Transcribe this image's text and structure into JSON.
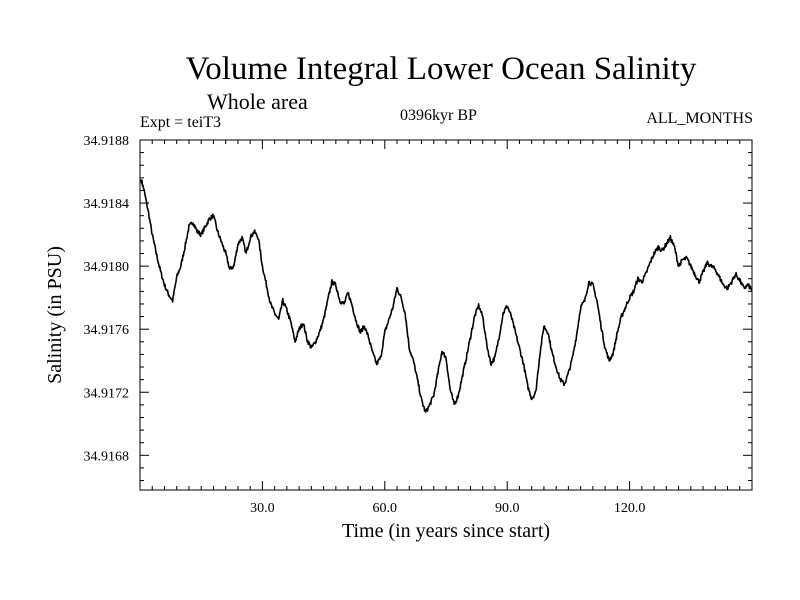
{
  "chart_data": {
    "type": "line",
    "title": "Volume Integral Lower Ocean Salinity",
    "subtitle": "Whole area",
    "expt_label": "Expt = teiT3",
    "period_label": "0396kyr BP",
    "months_label": "ALL_MONTHS",
    "xlabel": "Time (in years since start)",
    "ylabel": "Salinity (in PSU)",
    "xlim": [
      0,
      150
    ],
    "ylim": [
      34.91658,
      34.9188
    ],
    "x_ticks": [
      30,
      60,
      90,
      120
    ],
    "x_tick_labels": [
      "30.0",
      "60.0",
      "90.0",
      "120.0"
    ],
    "y_ticks": [
      34.9168,
      34.9172,
      34.9176,
      34.918,
      34.9184,
      34.9188
    ],
    "y_tick_labels": [
      "34.9168",
      "34.9172",
      "34.9176",
      "34.9180",
      "34.9184",
      "34.9188"
    ],
    "grid": false,
    "series": [
      {
        "name": "salinity",
        "x": [
          0.3,
          1,
          2,
          3,
          4,
          5,
          6,
          7,
          8,
          9,
          10,
          11,
          12,
          13,
          14,
          15,
          16,
          17,
          18,
          19,
          20,
          21,
          22,
          23,
          24,
          25,
          26,
          27,
          28,
          29,
          30,
          31,
          32,
          33,
          34,
          35,
          36,
          37,
          38,
          39,
          40,
          41,
          42,
          43,
          44,
          45,
          46,
          47,
          48,
          49,
          50,
          51,
          52,
          53,
          54,
          55,
          56,
          57,
          58,
          59,
          60,
          61,
          62,
          63,
          64,
          65,
          66,
          67,
          68,
          69,
          70,
          71,
          72,
          73,
          74,
          75,
          76,
          77,
          78,
          79,
          80,
          81,
          82,
          83,
          84,
          85,
          86,
          87,
          88,
          89,
          90,
          91,
          92,
          93,
          94,
          95,
          96,
          97,
          98,
          99,
          100,
          101,
          102,
          103,
          104,
          105,
          106,
          107,
          108,
          109,
          110,
          111,
          112,
          113,
          114,
          115,
          116,
          117,
          118,
          119,
          120,
          121,
          122,
          123,
          124,
          125,
          126,
          127,
          128,
          129,
          130,
          131,
          132,
          133,
          134,
          135,
          136,
          137,
          138,
          139,
          140,
          141,
          142,
          143,
          144,
          145,
          146,
          147,
          148,
          149,
          150
        ],
        "values": [
          34.91855,
          34.91848,
          34.91835,
          34.9182,
          34.91808,
          34.91797,
          34.91788,
          34.91782,
          34.91778,
          34.91793,
          34.918,
          34.91812,
          34.91825,
          34.91828,
          34.91822,
          34.9182,
          34.91825,
          34.9183,
          34.91832,
          34.91822,
          34.91815,
          34.91808,
          34.91798,
          34.918,
          34.91814,
          34.91818,
          34.91808,
          34.91818,
          34.91822,
          34.91818,
          34.918,
          34.91788,
          34.91776,
          34.9177,
          34.91766,
          34.91778,
          34.91772,
          34.91764,
          34.91752,
          34.9176,
          34.91764,
          34.91753,
          34.91748,
          34.91752,
          34.91758,
          34.91766,
          34.91778,
          34.9179,
          34.91788,
          34.91778,
          34.91776,
          34.91783,
          34.91775,
          34.91765,
          34.91758,
          34.91762,
          34.91755,
          34.91745,
          34.91738,
          34.91742,
          34.91758,
          34.91766,
          34.91774,
          34.91786,
          34.9178,
          34.9177,
          34.91748,
          34.9174,
          34.91728,
          34.91715,
          34.91707,
          34.91712,
          34.91718,
          34.91732,
          34.91746,
          34.91742,
          34.91722,
          34.91712,
          34.91718,
          34.9173,
          34.91742,
          34.91755,
          34.91768,
          34.91775,
          34.91768,
          34.9175,
          34.91738,
          34.91742,
          34.91755,
          34.9177,
          34.91775,
          34.91768,
          34.91758,
          34.91748,
          34.91738,
          34.91724,
          34.91716,
          34.9172,
          34.91744,
          34.91762,
          34.91758,
          34.91745,
          34.91736,
          34.91728,
          34.91725,
          34.91732,
          34.91742,
          34.91756,
          34.91774,
          34.91778,
          34.9179,
          34.91788,
          34.91778,
          34.91762,
          34.91748,
          34.9174,
          34.91745,
          34.91758,
          34.91768,
          34.91774,
          34.9178,
          34.91784,
          34.91792,
          34.9179,
          34.91795,
          34.91802,
          34.91808,
          34.91812,
          34.9181,
          34.91814,
          34.91818,
          34.91812,
          34.918,
          34.91804,
          34.91805,
          34.918,
          34.91795,
          34.9179,
          34.91796,
          34.91802,
          34.918,
          34.91798,
          34.91793,
          34.91788,
          34.91786,
          34.9179,
          34.91795,
          34.91791,
          34.91786,
          34.91788,
          34.91785
        ]
      }
    ]
  }
}
